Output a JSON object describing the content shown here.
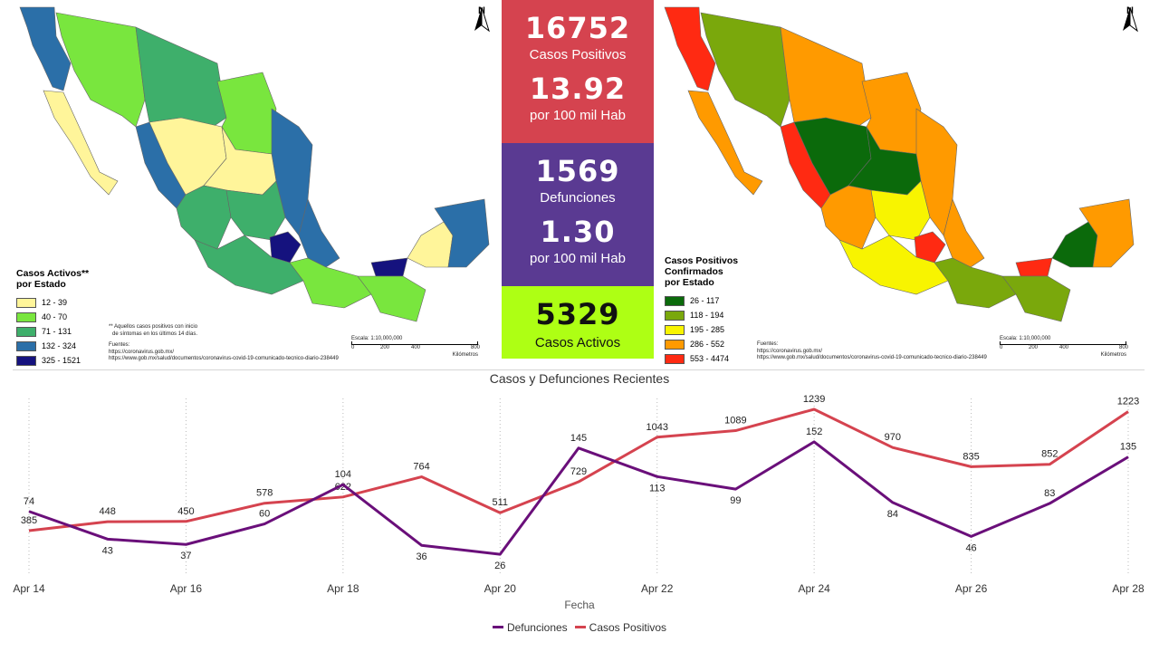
{
  "map_left": {
    "legend_title_1": "Casos Activos**",
    "legend_title_2": "por Estado",
    "legend": [
      {
        "label": "12 - 39",
        "color": "#fff59a"
      },
      {
        "label": "40 - 70",
        "color": "#79e63e"
      },
      {
        "label": "71 - 131",
        "color": "#3eaf6b"
      },
      {
        "label": "132 - 324",
        "color": "#2b6fa8"
      },
      {
        "label": "325 - 1521",
        "color": "#15127e"
      }
    ],
    "note_1": "** Aquellos casos positivos con inicio",
    "note_2": "de síntomas en los últimos 14 días.",
    "sources_label": "Fuentes:",
    "source_1": "https://coronavirus.gob.mx/",
    "source_2": "https://www.gob.mx/salud/documentos/coronavirus-covid-19-comunicado-tecnico-diario-238449",
    "scale_label": "Escala: 1:10,000,000",
    "scale_ticks": [
      "0",
      "200",
      "400",
      "800"
    ],
    "scale_unit": "Kilómetros",
    "north": "N"
  },
  "map_right": {
    "legend_title_1": "Casos Positivos",
    "legend_title_2": "Confirmados",
    "legend_title_3": "por Estado",
    "legend": [
      {
        "label": "26 - 117",
        "color": "#0b6a0b"
      },
      {
        "label": "118 - 194",
        "color": "#7aa80c"
      },
      {
        "label": "195 - 285",
        "color": "#f8f400"
      },
      {
        "label": "286 - 552",
        "color": "#ff9a00"
      },
      {
        "label": "553 - 4474",
        "color": "#ff2a12"
      }
    ],
    "sources_label": "Fuentes:",
    "source_1": "https://coronavirus.gob.mx/",
    "source_2": "https://www.gob.mx/salud/documentos/coronavirus-covid-19-comunicado-tecnico-diario-238449",
    "scale_label": "Escala: 1:10,000,000",
    "scale_ticks": [
      "0",
      "200",
      "400",
      "800"
    ],
    "scale_unit": "Kilómetros",
    "north": "N"
  },
  "stats": {
    "positive_total": "16752",
    "positive_label": "Casos Positivos",
    "positive_rate": "13.92",
    "positive_rate_label": "por 100 mil Hab",
    "deaths_total": "1569",
    "deaths_label": "Defunciones",
    "deaths_rate": "1.30",
    "deaths_rate_label": "por 100 mil Hab",
    "active_total": "5329",
    "active_label": "Casos Activos",
    "colors": {
      "positive": "#d5434f",
      "deaths": "#5a3a92",
      "active": "#aeff14"
    }
  },
  "chart_data": {
    "type": "line",
    "title": "Casos y Defunciones Recientes",
    "xlabel": "Fecha",
    "ylabel": "",
    "x": [
      "Apr 14",
      "Apr 15",
      "Apr 16",
      "Apr 17",
      "Apr 18",
      "Apr 19",
      "Apr 20",
      "Apr 21",
      "Apr 22",
      "Apr 23",
      "Apr 24",
      "Apr 25",
      "Apr 26",
      "Apr 27",
      "Apr 28"
    ],
    "tick_labels": [
      "Apr 14",
      "Apr 16",
      "Apr 18",
      "Apr 20",
      "Apr 22",
      "Apr 24",
      "Apr 26",
      "Apr 28"
    ],
    "series": [
      {
        "name": "Defunciones",
        "color": "#6a0f7a",
        "values": [
          74,
          43,
          37,
          60,
          104,
          36,
          26,
          145,
          113,
          99,
          152,
          84,
          46,
          83,
          135
        ]
      },
      {
        "name": "Casos Positivos",
        "color": "#d5434f",
        "values": [
          385,
          448,
          450,
          578,
          622,
          764,
          511,
          729,
          1043,
          1089,
          1239,
          970,
          835,
          852,
          1223
        ]
      }
    ],
    "legend_position": "bottom",
    "grid": "vertical-dotted"
  }
}
